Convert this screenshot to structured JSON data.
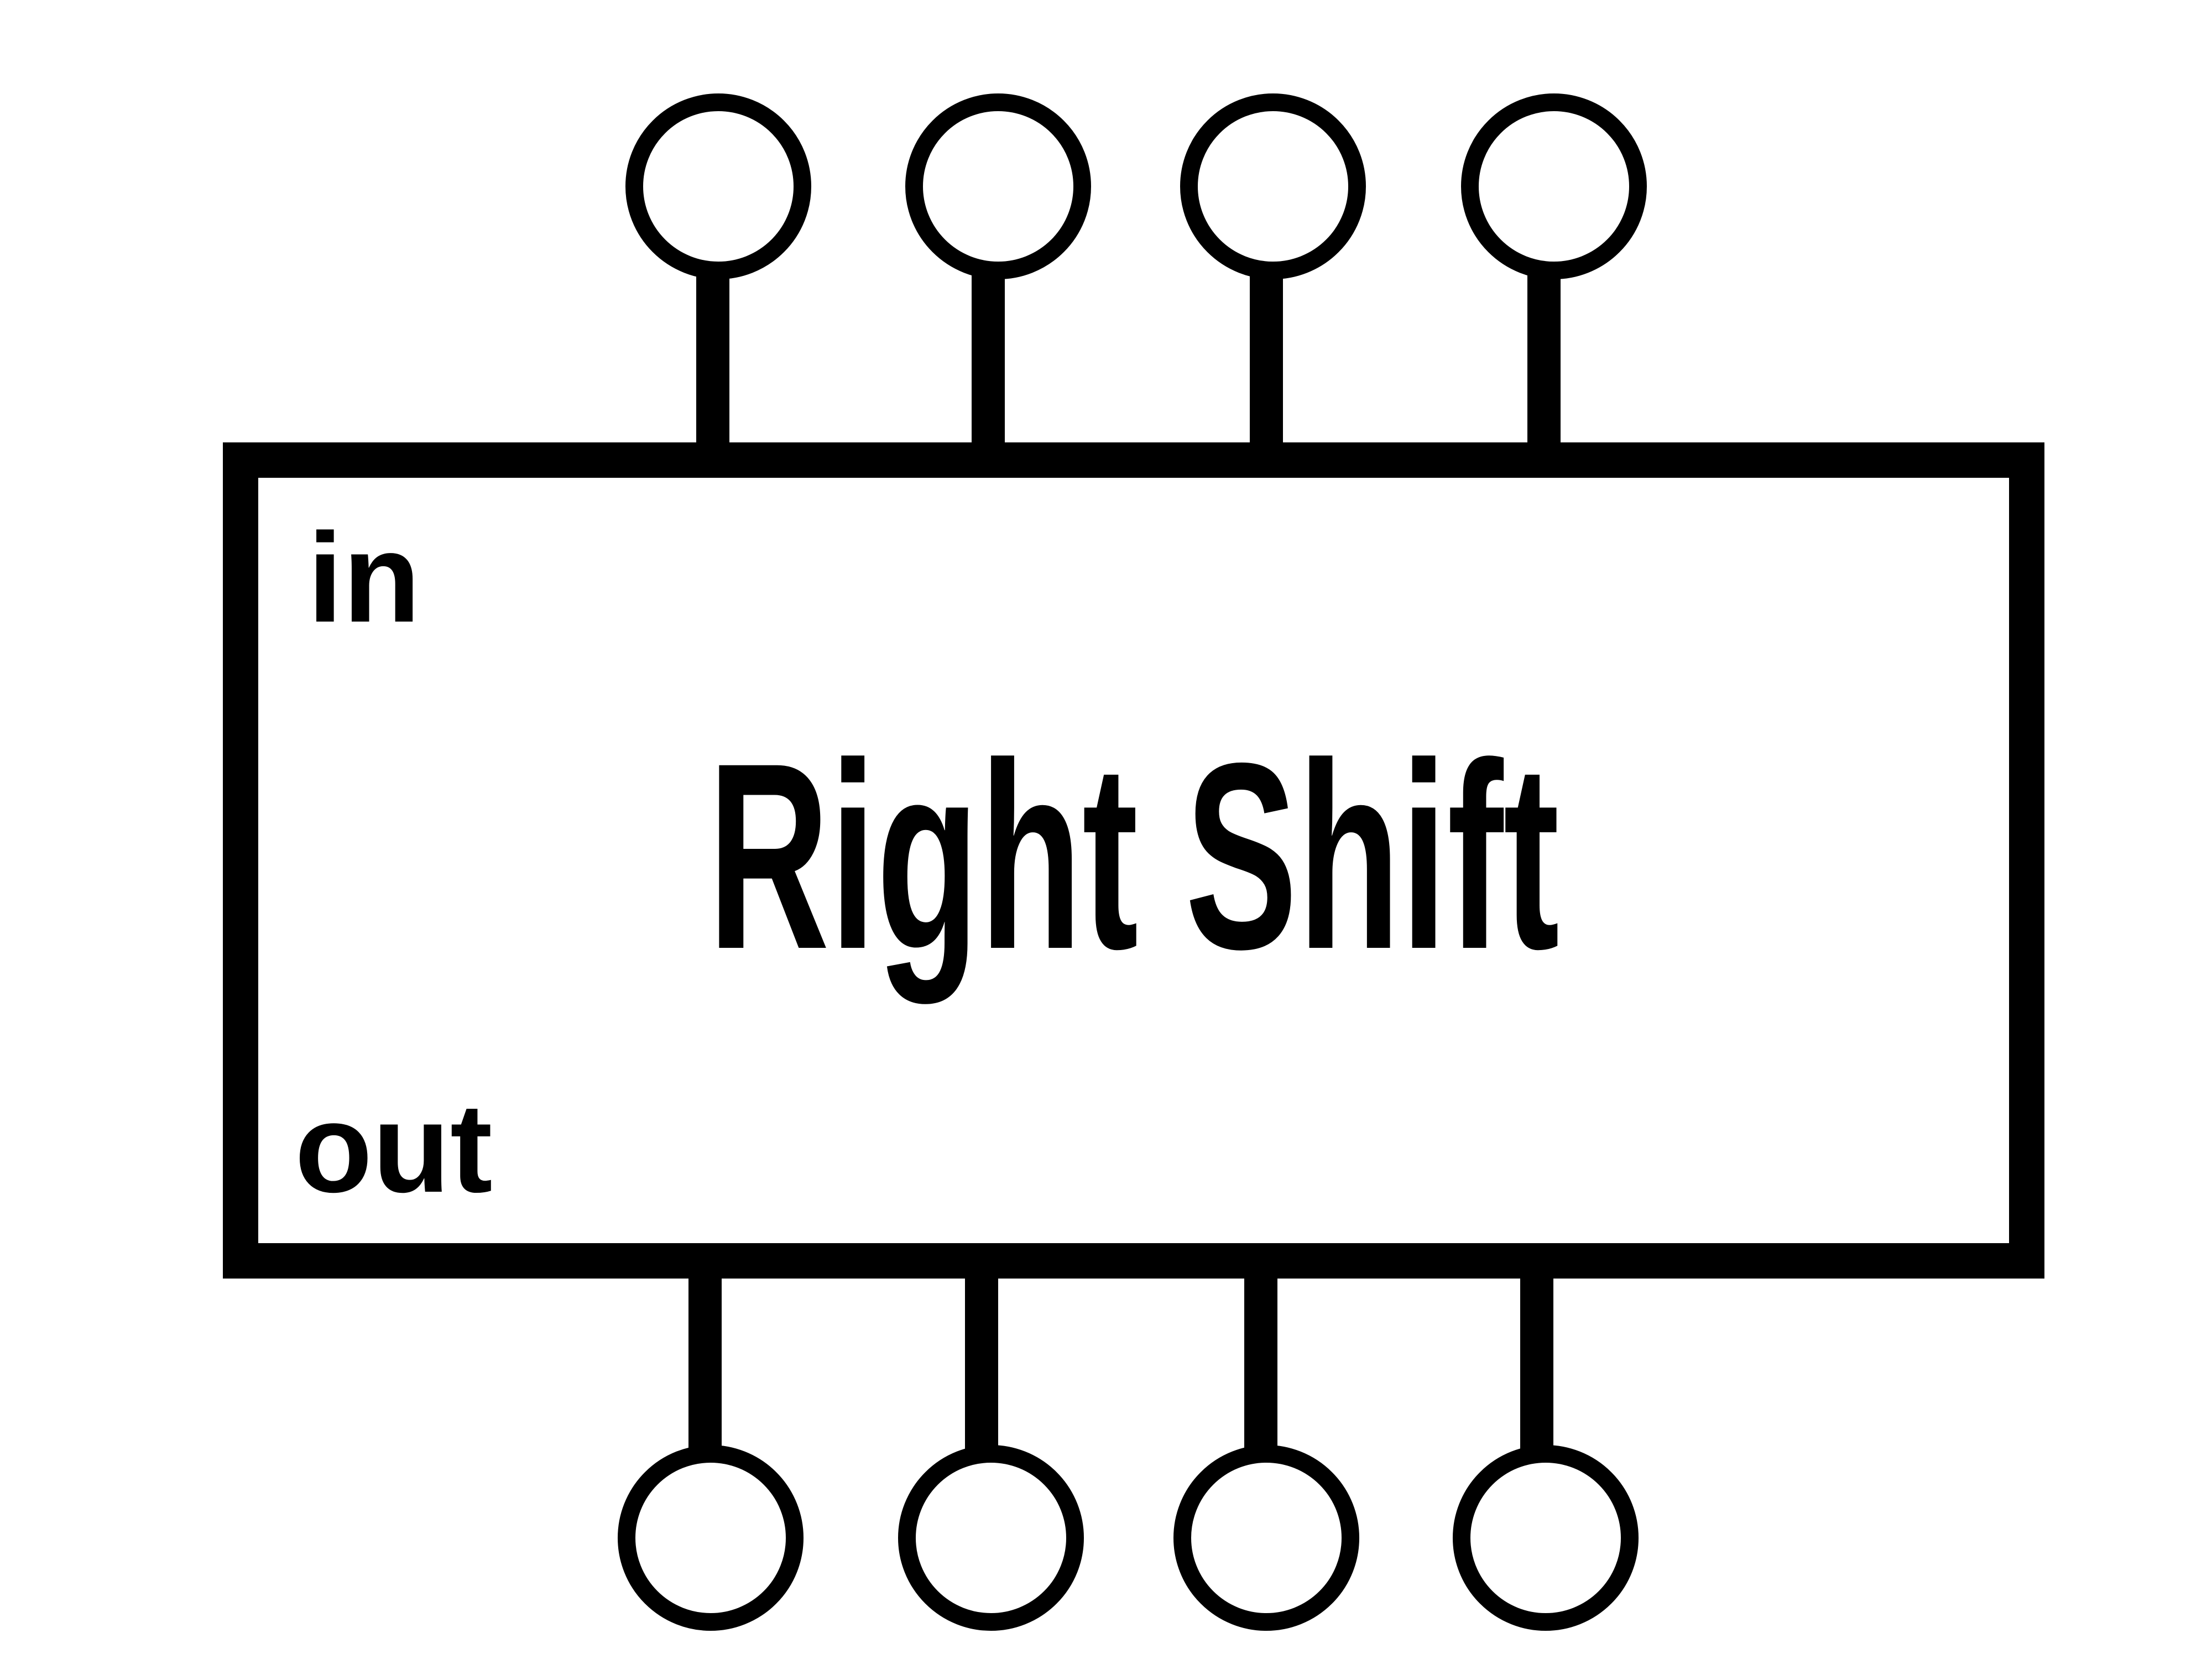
{
  "component": {
    "title": "Right Shift",
    "input_label": "in",
    "output_label": "out"
  },
  "pins": {
    "inputs": [
      "in-0",
      "in-1",
      "in-2",
      "in-3"
    ],
    "outputs": [
      "out-0",
      "out-1",
      "out-2",
      "out-3"
    ]
  },
  "colors": {
    "stroke": "#000000",
    "background": "#ffffff"
  }
}
